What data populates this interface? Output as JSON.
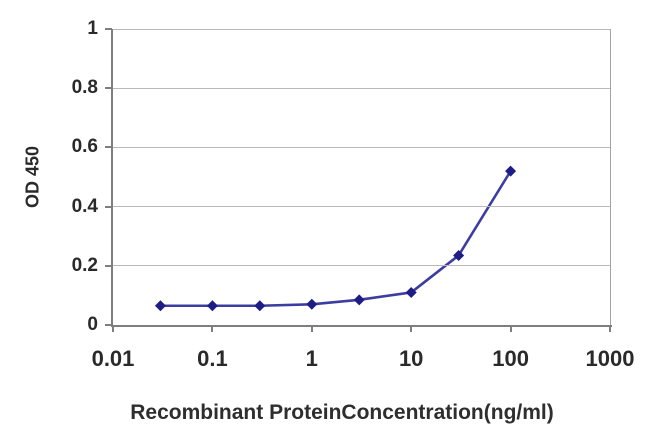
{
  "chart_data": {
    "type": "line",
    "title": "",
    "xlabel": "Recombinant ProteinConcentration(ng/ml)",
    "ylabel": "OD 450",
    "x_scale": "log",
    "xlim": [
      0.01,
      1000
    ],
    "ylim": [
      0,
      1
    ],
    "x": [
      0.03,
      0.1,
      0.3,
      1,
      3,
      10,
      30,
      100
    ],
    "y": [
      0.065,
      0.065,
      0.065,
      0.07,
      0.085,
      0.11,
      0.235,
      0.52
    ],
    "x_ticks": [
      "0.01",
      "0.1",
      "1",
      "10",
      "100",
      "1000"
    ],
    "y_ticks": [
      "1",
      "0.8",
      "0.6",
      "0.4",
      "0.2",
      "0"
    ],
    "grid": "horizontal-major",
    "legend": "none",
    "marker": "diamond",
    "line_color": "#3d3da1",
    "marker_color": "#1d1d85",
    "grid_color": "#b9b9b9",
    "axis_color": "#7e7e7e",
    "text_color": "#2a2a2a"
  }
}
